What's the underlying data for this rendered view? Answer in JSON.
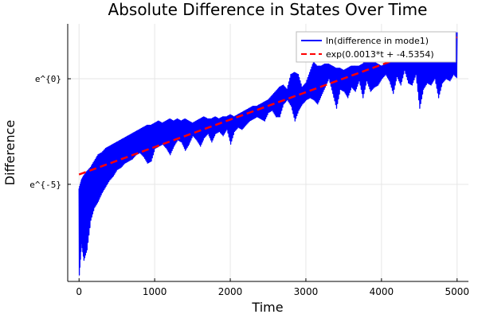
{
  "chart_data": {
    "type": "line",
    "title": "Absolute Difference in States Over Time",
    "xlabel": "Time",
    "ylabel": "Difference",
    "xlim": [
      -150,
      5150
    ],
    "ylim": [
      -9.6,
      2.6
    ],
    "x_ticks": [
      0,
      1000,
      2000,
      3000,
      4000,
      5000
    ],
    "x_tick_labels": [
      "0",
      "1000",
      "2000",
      "3000",
      "4000",
      "5000"
    ],
    "y_ticks": [
      -5,
      0
    ],
    "y_tick_labels": [
      "e^{-5}",
      "e^{0}"
    ],
    "grid": true,
    "legend": {
      "position": "top-right"
    },
    "series": [
      {
        "name": "ln(difference in mode1)",
        "color": "#0000ff",
        "style": "solid",
        "x": [
          0,
          30,
          60,
          100,
          150,
          200,
          250,
          300,
          350,
          400,
          450,
          500,
          550,
          600,
          650,
          700,
          750,
          800,
          850,
          900,
          950,
          1000,
          1050,
          1100,
          1150,
          1200,
          1250,
          1300,
          1350,
          1400,
          1450,
          1500,
          1550,
          1600,
          1650,
          1700,
          1750,
          1800,
          1850,
          1900,
          1950,
          2000,
          2050,
          2100,
          2150,
          2200,
          2250,
          2300,
          2350,
          2400,
          2450,
          2500,
          2550,
          2600,
          2650,
          2700,
          2750,
          2800,
          2850,
          2900,
          2950,
          3000,
          3050,
          3100,
          3150,
          3200,
          3250,
          3300,
          3350,
          3400,
          3450,
          3500,
          3550,
          3600,
          3650,
          3700,
          3750,
          3800,
          3850,
          3900,
          3950,
          4000,
          4050,
          4100,
          4150,
          4200,
          4250,
          4300,
          4350,
          4400,
          4450,
          4500,
          4550,
          4600,
          4650,
          4700,
          4750,
          4800,
          4850,
          4900,
          4950,
          5000
        ],
        "y_low": [
          -9.3,
          -7.8,
          -8.6,
          -8.1,
          -6.7,
          -6.1,
          -5.8,
          -5.4,
          -5.1,
          -4.8,
          -4.6,
          -4.3,
          -4.2,
          -4.0,
          -3.9,
          -3.8,
          -3.6,
          -3.5,
          -3.7,
          -4.0,
          -3.9,
          -3.3,
          -3.2,
          -3.1,
          -3.3,
          -3.6,
          -3.2,
          -2.9,
          -3.0,
          -3.4,
          -3.1,
          -2.7,
          -2.9,
          -3.2,
          -2.8,
          -2.6,
          -3.0,
          -2.6,
          -2.5,
          -2.7,
          -2.4,
          -3.1,
          -2.5,
          -2.3,
          -2.4,
          -2.2,
          -2.0,
          -1.9,
          -1.8,
          -1.9,
          -2.0,
          -1.6,
          -1.5,
          -1.8,
          -1.8,
          -1.2,
          -1.0,
          -1.3,
          -2.0,
          -1.5,
          -1.2,
          -1.0,
          -0.9,
          -1.0,
          -1.2,
          -0.8,
          -0.4,
          0.0,
          -0.7,
          -1.4,
          -0.5,
          -0.6,
          -0.9,
          -0.4,
          -0.6,
          -0.1,
          -0.9,
          -0.1,
          -0.6,
          -0.4,
          -0.3,
          0.0,
          0.2,
          -0.1,
          -0.7,
          0.1,
          -0.3,
          0.4,
          -0.2,
          -0.3,
          0.2,
          -1.4,
          -0.5,
          -0.2,
          -0.3,
          0.0,
          -0.9,
          -0.2,
          0.0,
          -0.1,
          0.2,
          0.0
        ],
        "y_high": [
          -5.2,
          -4.8,
          -4.6,
          -4.4,
          -4.2,
          -3.9,
          -3.6,
          -3.5,
          -3.3,
          -3.2,
          -3.1,
          -3.0,
          -2.9,
          -2.8,
          -2.7,
          -2.6,
          -2.5,
          -2.4,
          -2.3,
          -2.2,
          -2.2,
          -2.1,
          -2.0,
          -2.1,
          -2.0,
          -1.9,
          -2.0,
          -1.9,
          -2.0,
          -1.9,
          -2.0,
          -2.1,
          -2.0,
          -1.9,
          -1.8,
          -1.9,
          -1.9,
          -1.8,
          -1.9,
          -1.8,
          -1.8,
          -1.7,
          -1.8,
          -1.7,
          -1.6,
          -1.5,
          -1.4,
          -1.3,
          -1.3,
          -1.2,
          -1.1,
          -1.0,
          -0.8,
          -0.6,
          -0.4,
          -0.3,
          -0.5,
          0.2,
          0.3,
          0.2,
          -0.4,
          -0.2,
          0.3,
          0.8,
          0.6,
          0.6,
          0.7,
          0.7,
          0.6,
          0.5,
          0.5,
          0.4,
          0.5,
          0.6,
          0.6,
          0.6,
          0.7,
          0.9,
          0.8,
          0.8,
          0.7,
          0.6,
          0.7,
          0.8,
          0.9,
          0.9,
          0.8,
          0.8,
          0.8,
          0.9,
          1.0,
          1.1,
          1.1,
          1.1,
          1.0,
          1.1,
          1.2,
          1.3,
          1.3,
          1.4,
          2.1,
          2.2
        ]
      },
      {
        "name": "exp(0.0013*t + -4.5354)",
        "color": "#ff0000",
        "style": "dashed",
        "x": [
          0,
          5000
        ],
        "y": [
          -4.5354,
          1.9646
        ]
      }
    ]
  }
}
